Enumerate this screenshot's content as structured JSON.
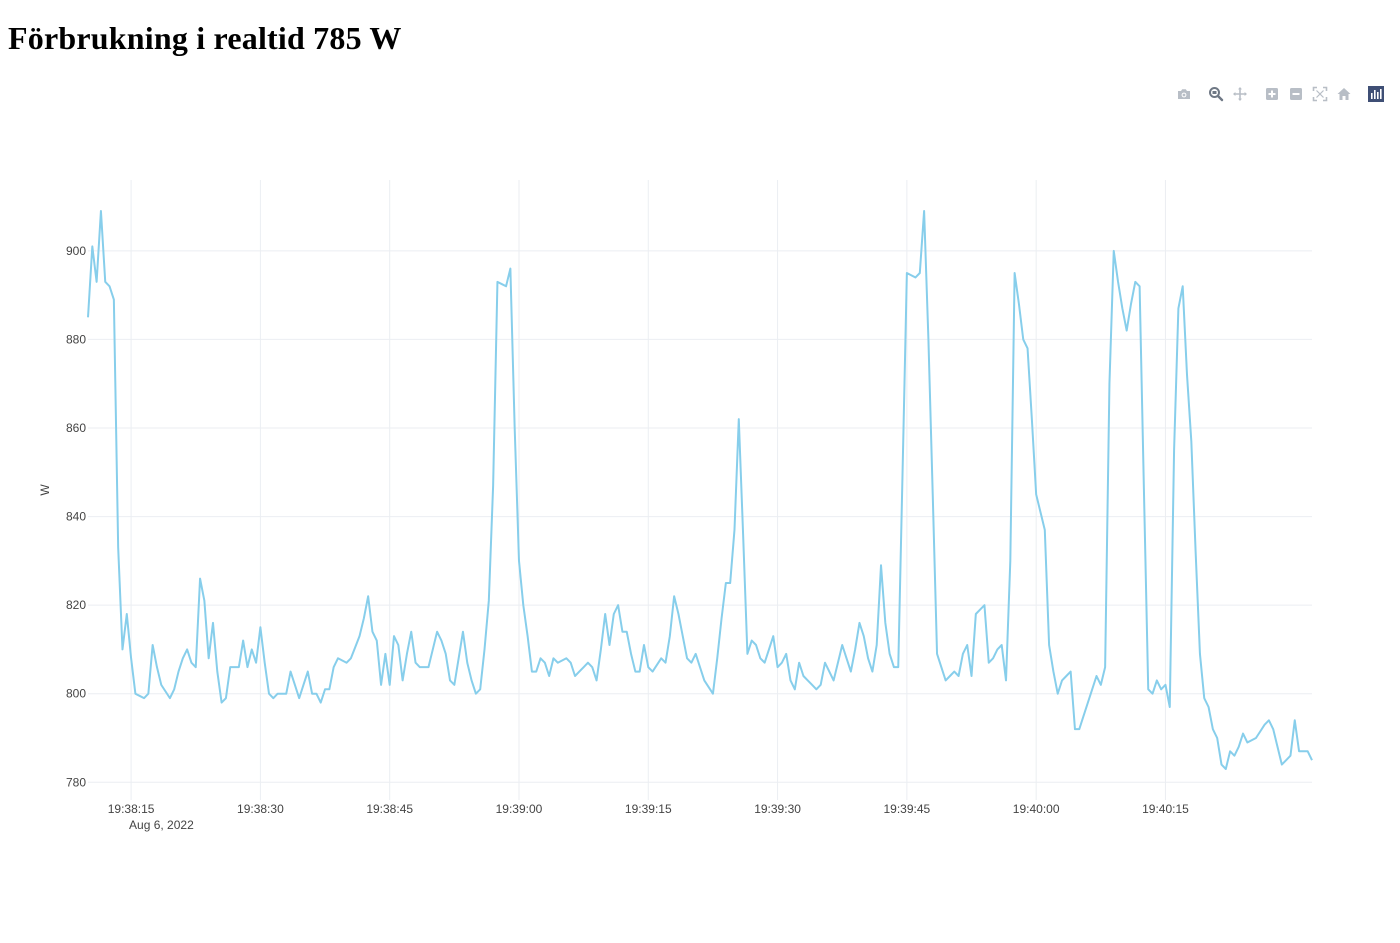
{
  "page": {
    "title": "Förbrukning i realtid 785 W"
  },
  "modebar": {
    "buttons": [
      {
        "name": "camera-icon",
        "color": "#b8bec6"
      },
      {
        "name": "zoom-icon",
        "color": "#7a8290",
        "active": true
      },
      {
        "name": "pan-icon",
        "color": "#b8bec6"
      },
      {
        "name": "zoom-in-icon",
        "color": "#b8bec6"
      },
      {
        "name": "zoom-out-icon",
        "color": "#b8bec6"
      },
      {
        "name": "autoscale-icon",
        "color": "#b8bec6"
      },
      {
        "name": "reset-axes-icon",
        "color": "#b8bec6"
      },
      {
        "name": "plotly-logo-icon",
        "color": "#3f4f75"
      }
    ]
  },
  "chart_data": {
    "type": "line",
    "title": "",
    "xlabel": "",
    "ylabel": "W",
    "line_color": "#87ceeb",
    "grid": true,
    "x_start": "19:38:10",
    "x_range": [
      "19:38:10",
      "19:40:32"
    ],
    "x_ticks": [
      "19:38:15",
      "19:38:30",
      "19:38:45",
      "19:39:00",
      "19:39:15",
      "19:39:30",
      "19:39:45",
      "19:40:00",
      "19:40:15"
    ],
    "x_tick_sublabel": "Aug 6, 2022",
    "ylim": [
      776,
      916
    ],
    "y_ticks": [
      780,
      800,
      820,
      840,
      860,
      880,
      900
    ],
    "x_step_seconds": 0.5,
    "series": [
      {
        "values": [
          885,
          901,
          893,
          909,
          893,
          892,
          889,
          833,
          810,
          818,
          808,
          800,
          799.5,
          799,
          800,
          811,
          806,
          802,
          800.5,
          799,
          801,
          805,
          808,
          810,
          807,
          806,
          826,
          821,
          808,
          816,
          805,
          798,
          799,
          806,
          806,
          806,
          812,
          806,
          810,
          807,
          815,
          807,
          800,
          799,
          800,
          800,
          800,
          805,
          802,
          799,
          802,
          805,
          800,
          800,
          798,
          801,
          801,
          806,
          808,
          807.5,
          807,
          808,
          810.5,
          813,
          817,
          822,
          814,
          812,
          802,
          809,
          802,
          813,
          811,
          803,
          809,
          814,
          807,
          806,
          806,
          806,
          810,
          814,
          812,
          809,
          803,
          802,
          808,
          814,
          807,
          803,
          800,
          801,
          810,
          821,
          847,
          893,
          892.5,
          892,
          896,
          860,
          830,
          820,
          813,
          805,
          805,
          808,
          807,
          804,
          808,
          807,
          807.5,
          808,
          807,
          804,
          805,
          806,
          807,
          806,
          803,
          810,
          818,
          811,
          818,
          820,
          814,
          814,
          809,
          805,
          805,
          811,
          806,
          805,
          806.5,
          808,
          807,
          813,
          822,
          818,
          813,
          808,
          807,
          809,
          806,
          803,
          801.5,
          800,
          808,
          817,
          825,
          825,
          837,
          862,
          836,
          809,
          812,
          811,
          808,
          807,
          810,
          813,
          806,
          807,
          809,
          803,
          801,
          807,
          804,
          803,
          802,
          801,
          802,
          807,
          805,
          803,
          807,
          811,
          808,
          805,
          810,
          816,
          813,
          808,
          805,
          811,
          829,
          816,
          809,
          806,
          806,
          850,
          895,
          894.5,
          894,
          895,
          909,
          880,
          845,
          809,
          806,
          803,
          804,
          805,
          804,
          809,
          811,
          804,
          818,
          819,
          820,
          807,
          808,
          810,
          811,
          803,
          830,
          895,
          888,
          880,
          878,
          862,
          845,
          841,
          837,
          811,
          805,
          800,
          803,
          804,
          805,
          792,
          792,
          795,
          798,
          801,
          804,
          802,
          806,
          870,
          900,
          893,
          887,
          882,
          888,
          893,
          892,
          846,
          801,
          800,
          803,
          801,
          802,
          797,
          855,
          887,
          892,
          872,
          857,
          832,
          809,
          799,
          797,
          792,
          790,
          784,
          783,
          787,
          786,
          788,
          791,
          789,
          789.5,
          790,
          791.5,
          793,
          794,
          792,
          788,
          784,
          785,
          786,
          794,
          787,
          787,
          787,
          785
        ]
      }
    ]
  }
}
